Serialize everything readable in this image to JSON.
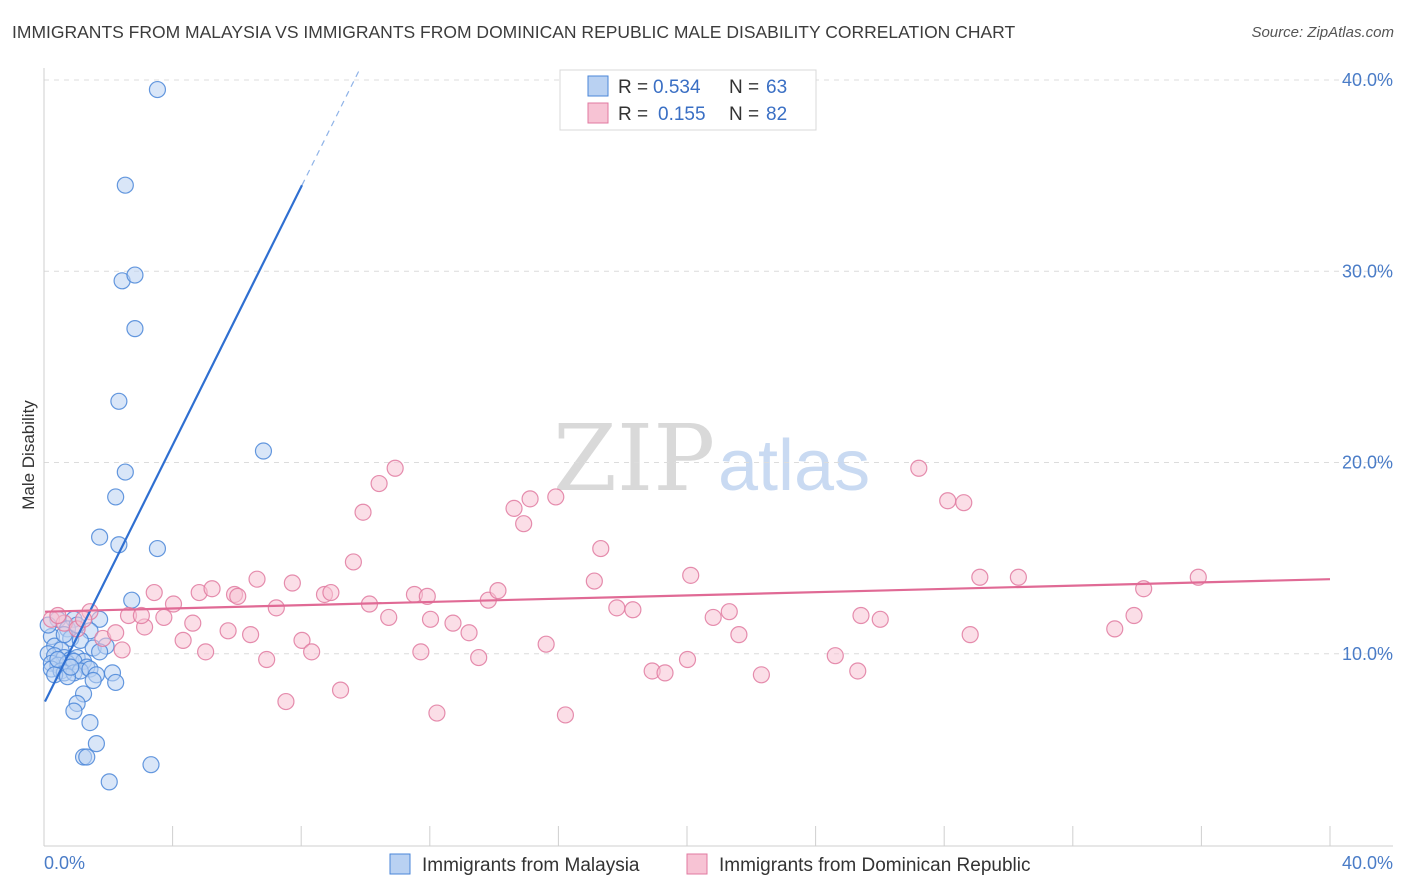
{
  "title": "IMMIGRANTS FROM MALAYSIA VS IMMIGRANTS FROM DOMINICAN REPUBLIC MALE DISABILITY CORRELATION CHART",
  "source": "Source: ZipAtlas.com",
  "watermark": {
    "zip": "ZIP",
    "atlas": "atlas"
  },
  "chart_data": {
    "type": "scatter",
    "title": "IMMIGRANTS FROM MALAYSIA VS IMMIGRANTS FROM DOMINICAN REPUBLIC MALE DISABILITY CORRELATION CHART",
    "xlabel": "",
    "ylabel": "Male Disability",
    "xlim": [
      0,
      40
    ],
    "ylim": [
      0,
      40
    ],
    "x_tick_labels": [
      "0.0%",
      "40.0%"
    ],
    "y_ticks": [
      10,
      20,
      30,
      40
    ],
    "y_tick_labels": [
      "10.0%",
      "20.0%",
      "30.0%",
      "40.0%"
    ],
    "grid": "horizontal dashed",
    "legend_position": "top-center",
    "legend": [
      {
        "r_label": "R =",
        "r_value": "0.534",
        "n_label": "N =",
        "n_value": "63"
      },
      {
        "r_label": "R =",
        "r_value": "0.155",
        "n_label": "N =",
        "n_value": "82"
      }
    ],
    "series": [
      {
        "name": "Immigrants from Malaysia",
        "color": "#4a86d8",
        "fill": "#b9d1f2",
        "trend": {
          "x0": 0,
          "y0": 7.5,
          "x1": 8.0,
          "y1": 34.5,
          "dash_to_x": 9.8
        },
        "points": [
          [
            3.5,
            39.5
          ],
          [
            2.5,
            34.5
          ],
          [
            2.4,
            29.5
          ],
          [
            2.8,
            29.8
          ],
          [
            2.8,
            27.0
          ],
          [
            2.3,
            23.2
          ],
          [
            6.8,
            20.6
          ],
          [
            2.5,
            19.5
          ],
          [
            2.2,
            18.2
          ],
          [
            1.7,
            16.1
          ],
          [
            2.3,
            15.7
          ],
          [
            3.5,
            15.5
          ],
          [
            2.7,
            12.8
          ],
          [
            0.4,
            11.8
          ],
          [
            0.9,
            11.8
          ],
          [
            1.7,
            11.8
          ],
          [
            0.7,
            11.3
          ],
          [
            1.4,
            11.2
          ],
          [
            0.2,
            10.9
          ],
          [
            0.8,
            10.8
          ],
          [
            1.1,
            10.7
          ],
          [
            0.3,
            10.4
          ],
          [
            0.5,
            10.2
          ],
          [
            1.5,
            10.3
          ],
          [
            1.9,
            10.4
          ],
          [
            0.1,
            10.0
          ],
          [
            0.3,
            9.9
          ],
          [
            0.6,
            9.8
          ],
          [
            0.8,
            9.7
          ],
          [
            1.0,
            9.8
          ],
          [
            1.2,
            9.6
          ],
          [
            0.2,
            9.5
          ],
          [
            0.4,
            9.4
          ],
          [
            0.7,
            9.5
          ],
          [
            0.9,
            9.6
          ],
          [
            1.3,
            9.3
          ],
          [
            0.2,
            9.2
          ],
          [
            0.5,
            9.1
          ],
          [
            0.6,
            9.0
          ],
          [
            0.9,
            9.0
          ],
          [
            1.1,
            9.1
          ],
          [
            1.4,
            9.2
          ],
          [
            0.3,
            8.9
          ],
          [
            0.7,
            8.8
          ],
          [
            1.6,
            8.9
          ],
          [
            2.1,
            9.0
          ],
          [
            1.5,
            8.6
          ],
          [
            2.2,
            8.5
          ],
          [
            1.2,
            7.9
          ],
          [
            1.0,
            7.4
          ],
          [
            0.9,
            7.0
          ],
          [
            1.4,
            6.4
          ],
          [
            1.6,
            5.3
          ],
          [
            1.2,
            4.6
          ],
          [
            1.3,
            4.6
          ],
          [
            3.3,
            4.2
          ],
          [
            2.0,
            3.3
          ],
          [
            0.1,
            11.5
          ],
          [
            0.6,
            11.0
          ],
          [
            1.0,
            11.5
          ],
          [
            0.4,
            9.7
          ],
          [
            1.7,
            10.1
          ],
          [
            0.8,
            9.3
          ]
        ]
      },
      {
        "name": "Immigrants from Dominican Republic",
        "color": "#e07aa0",
        "fill": "#f7c3d4",
        "trend": {
          "x0": 0,
          "y0": 12.2,
          "x1": 40,
          "y1": 13.9
        },
        "points": [
          [
            0.2,
            11.8
          ],
          [
            0.6,
            11.6
          ],
          [
            1.0,
            11.3
          ],
          [
            1.4,
            12.2
          ],
          [
            1.8,
            10.8
          ],
          [
            2.2,
            11.1
          ],
          [
            2.6,
            12.0
          ],
          [
            3.1,
            11.4
          ],
          [
            3.4,
            13.2
          ],
          [
            3.7,
            11.9
          ],
          [
            4.0,
            12.6
          ],
          [
            4.3,
            10.7
          ],
          [
            4.6,
            11.6
          ],
          [
            4.8,
            13.2
          ],
          [
            5.0,
            10.1
          ],
          [
            5.2,
            13.4
          ],
          [
            5.7,
            11.2
          ],
          [
            5.9,
            13.1
          ],
          [
            6.4,
            11.0
          ],
          [
            6.6,
            13.9
          ],
          [
            6.9,
            9.7
          ],
          [
            7.2,
            12.4
          ],
          [
            7.5,
            7.5
          ],
          [
            7.7,
            13.7
          ],
          [
            8.0,
            10.7
          ],
          [
            8.3,
            10.1
          ],
          [
            8.7,
            13.1
          ],
          [
            8.9,
            13.2
          ],
          [
            9.2,
            8.1
          ],
          [
            9.6,
            14.8
          ],
          [
            9.9,
            17.4
          ],
          [
            10.1,
            12.6
          ],
          [
            10.4,
            18.9
          ],
          [
            10.7,
            11.9
          ],
          [
            10.9,
            19.7
          ],
          [
            11.5,
            13.1
          ],
          [
            11.7,
            10.1
          ],
          [
            11.9,
            13.0
          ],
          [
            12.2,
            6.9
          ],
          [
            12.7,
            11.6
          ],
          [
            13.2,
            11.1
          ],
          [
            13.5,
            9.8
          ],
          [
            13.8,
            12.8
          ],
          [
            14.1,
            13.3
          ],
          [
            14.6,
            17.6
          ],
          [
            15.1,
            18.1
          ],
          [
            14.9,
            16.8
          ],
          [
            15.6,
            10.5
          ],
          [
            15.9,
            18.2
          ],
          [
            16.2,
            6.8
          ],
          [
            17.1,
            13.8
          ],
          [
            17.3,
            15.5
          ],
          [
            17.8,
            12.4
          ],
          [
            18.3,
            12.3
          ],
          [
            18.9,
            9.1
          ],
          [
            19.3,
            9.0
          ],
          [
            20.0,
            9.7
          ],
          [
            20.8,
            11.9
          ],
          [
            21.3,
            12.2
          ],
          [
            21.6,
            11.0
          ],
          [
            22.3,
            8.9
          ],
          [
            24.6,
            9.9
          ],
          [
            25.3,
            9.1
          ],
          [
            25.4,
            12.0
          ],
          [
            26.0,
            11.8
          ],
          [
            27.2,
            19.7
          ],
          [
            28.1,
            18.0
          ],
          [
            28.6,
            17.9
          ],
          [
            29.1,
            14.0
          ],
          [
            28.8,
            11.0
          ],
          [
            30.3,
            14.0
          ],
          [
            33.3,
            11.3
          ],
          [
            33.9,
            12.0
          ],
          [
            34.2,
            13.4
          ],
          [
            35.9,
            14.0
          ],
          [
            0.4,
            12.0
          ],
          [
            1.2,
            11.8
          ],
          [
            2.4,
            10.2
          ],
          [
            3.0,
            12.0
          ],
          [
            6.0,
            13.0
          ],
          [
            12.0,
            11.8
          ],
          [
            20.1,
            14.1
          ]
        ]
      }
    ]
  }
}
